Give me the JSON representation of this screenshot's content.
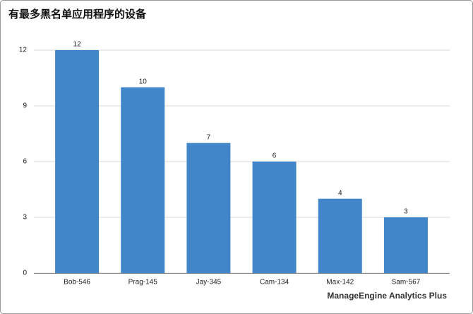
{
  "chart_data": {
    "type": "bar",
    "title": "有最多黑名单应用程序的设备",
    "categories": [
      "Bob-546",
      "Prag-145",
      "Jay-345",
      "Cam-134",
      "Max-142",
      "Sam-567"
    ],
    "values": [
      12,
      10,
      7,
      6,
      4,
      3
    ],
    "color": "#4086c8",
    "ylim": [
      0,
      12
    ],
    "yticks": [
      0,
      3,
      6,
      9,
      12
    ],
    "grid": true,
    "watermark": "ManageEngine Analytics Plus"
  }
}
